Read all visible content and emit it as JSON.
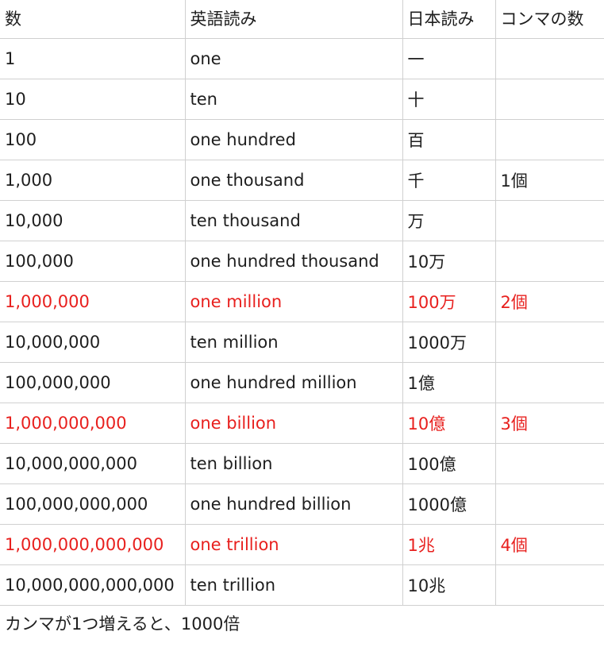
{
  "colors": {
    "highlight": "#e8201e",
    "text": "#1e1e1e",
    "grid": "#d0d0d0"
  },
  "table": {
    "headers": [
      "数",
      "英語読み",
      "日本読み",
      "コンマの数"
    ],
    "rows": [
      {
        "number": "1",
        "english": "one",
        "japanese": "一",
        "commas": "",
        "highlight": false
      },
      {
        "number": "10",
        "english": "ten",
        "japanese": "十",
        "commas": "",
        "highlight": false
      },
      {
        "number": "100",
        "english": "one hundred",
        "japanese": "百",
        "commas": "",
        "highlight": false
      },
      {
        "number": "1,000",
        "english": "one thousand",
        "japanese": "千",
        "commas": "1個",
        "highlight": false
      },
      {
        "number": "10,000",
        "english": "ten thousand",
        "japanese": "万",
        "commas": "",
        "highlight": false
      },
      {
        "number": "100,000",
        "english": "one hundred thousand",
        "japanese": "10万",
        "commas": "",
        "highlight": false
      },
      {
        "number": "1,000,000",
        "english": "one million",
        "japanese": "100万",
        "commas": "2個",
        "highlight": true
      },
      {
        "number": "10,000,000",
        "english": "ten million",
        "japanese": "1000万",
        "commas": "",
        "highlight": false
      },
      {
        "number": "100,000,000",
        "english": "one hundred million",
        "japanese": "1億",
        "commas": "",
        "highlight": false
      },
      {
        "number": "1,000,000,000",
        "english": "one billion",
        "japanese": "10億",
        "commas": "3個",
        "highlight": true
      },
      {
        "number": "10,000,000,000",
        "english": "ten billion",
        "japanese": "100億",
        "commas": "",
        "highlight": false
      },
      {
        "number": "100,000,000,000",
        "english": "one hundred billion",
        "japanese": "1000億",
        "commas": "",
        "highlight": false
      },
      {
        "number": "1,000,000,000,000",
        "english": "one trillion",
        "japanese": "1兆",
        "commas": "4個",
        "highlight": true
      },
      {
        "number": "10,000,000,000,000",
        "english": "ten trillion",
        "japanese": "10兆",
        "commas": "",
        "highlight": false
      }
    ]
  },
  "note": "カンマが1つ増えると、1000倍"
}
